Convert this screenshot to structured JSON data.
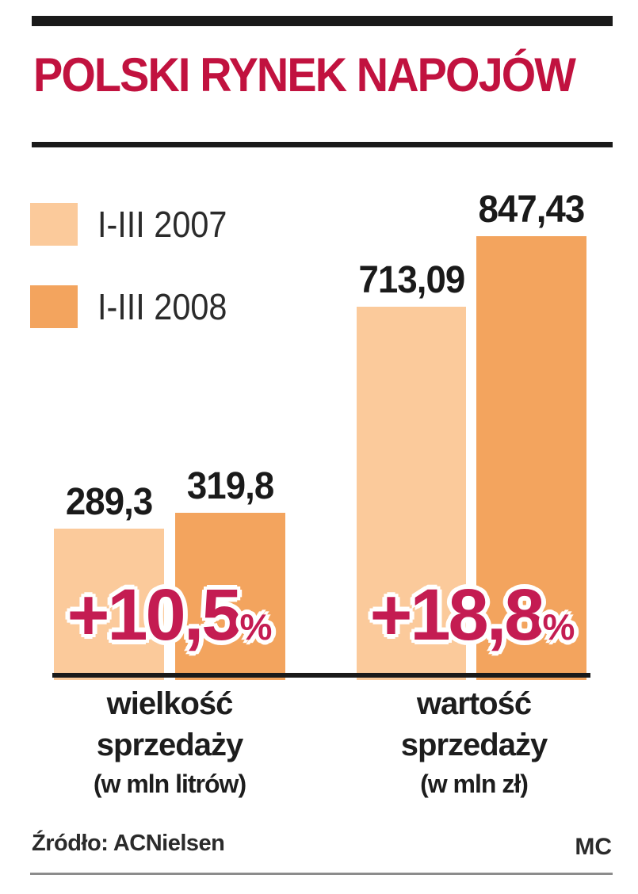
{
  "header": {
    "title": "POLSKI RYNEK NAPOJÓW"
  },
  "legend": {
    "items": [
      {
        "label": "I-III 2007",
        "color": "#fbca9b"
      },
      {
        "label": "I-III 2008",
        "color": "#f3a45e"
      }
    ]
  },
  "chart_data": {
    "type": "bar",
    "title": "POLSKI RYNEK NAPOJÓW",
    "series_names": [
      "I-III 2007",
      "I-III 2008"
    ],
    "groups": [
      {
        "label_line1": "wielkość",
        "label_line2": "sprzedaży",
        "unit": "(w mln litrów)",
        "values": [
          289.3,
          319.8
        ],
        "value_labels": [
          "289,3",
          "319,8"
        ],
        "change_label": "+10,5",
        "percent_sign": "%"
      },
      {
        "label_line1": "wartość",
        "label_line2": "sprzedaży",
        "unit": "(w mln zł)",
        "values": [
          713.09,
          847.43
        ],
        "value_labels": [
          "713,09",
          "847,43"
        ],
        "change_label": "+18,8",
        "percent_sign": "%"
      }
    ],
    "colors": {
      "series_2007": "#fbca9b",
      "series_2008": "#f3a45e",
      "title_red": "#c1123f",
      "change_red": "#c41c52",
      "axis": "#1a1a1a"
    },
    "ylim": [
      0,
      847.43
    ],
    "grid": false,
    "legend_position": "top-left",
    "value_labels_position": "above-bars"
  },
  "footer": {
    "source": "Źródło: ACNielsen",
    "credit": "MC"
  }
}
